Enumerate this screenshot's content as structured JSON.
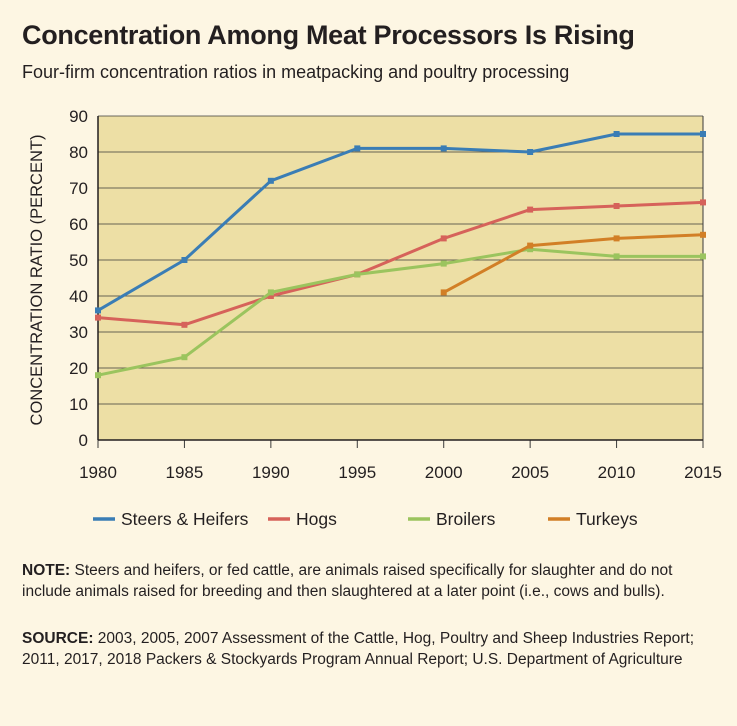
{
  "header": {
    "title": "Concentration Among Meat Processors Is Rising",
    "subtitle": "Four-firm concentration ratios in meatpacking and poultry processing"
  },
  "colors": {
    "plot_background": "#eddfa5",
    "gridline": "#3a3a3a",
    "page_background": "#fdf6e3"
  },
  "chart_data": {
    "type": "line",
    "title": "Concentration Among Meat Processors Is Rising",
    "subtitle": "Four-firm concentration ratios in meatpacking and poultry processing",
    "xlabel": "",
    "ylabel": "CONCENTRATION RATIO (PERCENT)",
    "xlim": [
      1980,
      2015
    ],
    "ylim": [
      0,
      90
    ],
    "x_ticks": [
      1980,
      1985,
      1990,
      1995,
      2000,
      2005,
      2010,
      2015
    ],
    "y_ticks": [
      0,
      10,
      20,
      30,
      40,
      50,
      60,
      70,
      80,
      90
    ],
    "grid": "horizontal",
    "legend_position": "bottom",
    "series": [
      {
        "name": "Steers & Heifers",
        "color": "#3a7db5",
        "points": [
          [
            1980,
            36
          ],
          [
            1985,
            50
          ],
          [
            1990,
            72
          ],
          [
            1995,
            81
          ],
          [
            2000,
            81
          ],
          [
            2005,
            80
          ],
          [
            2010,
            85
          ],
          [
            2015,
            85
          ]
        ]
      },
      {
        "name": "Hogs",
        "color": "#d6625a",
        "points": [
          [
            1980,
            34
          ],
          [
            1985,
            32
          ],
          [
            1990,
            40
          ],
          [
            1995,
            46
          ],
          [
            2000,
            56
          ],
          [
            2005,
            64
          ],
          [
            2010,
            65
          ],
          [
            2015,
            66
          ]
        ]
      },
      {
        "name": "Broilers",
        "color": "#9bc45e",
        "points": [
          [
            1980,
            18
          ],
          [
            1985,
            23
          ],
          [
            1990,
            41
          ],
          [
            1995,
            46
          ],
          [
            2000,
            49
          ],
          [
            2005,
            53
          ],
          [
            2010,
            51
          ],
          [
            2015,
            51
          ]
        ]
      },
      {
        "name": "Turkeys",
        "color": "#d27f26",
        "points": [
          [
            2000,
            41
          ],
          [
            2005,
            54
          ],
          [
            2010,
            56
          ],
          [
            2015,
            57
          ]
        ]
      }
    ]
  },
  "footer": {
    "note_label": "NOTE:",
    "note_text": " Steers and heifers, or fed cattle, are animals raised specifically for slaughter and do not include animals raised for breeding and then slaughtered at a later point (i.e., cows and bulls).",
    "source_label": "SOURCE:",
    "source_text": " 2003, 2005, 2007 Assessment of the Cattle, Hog, Poultry and Sheep Industries Report; 2011, 2017, 2018 Packers & Stockyards Program Annual Report; U.S. Department of Agriculture"
  }
}
